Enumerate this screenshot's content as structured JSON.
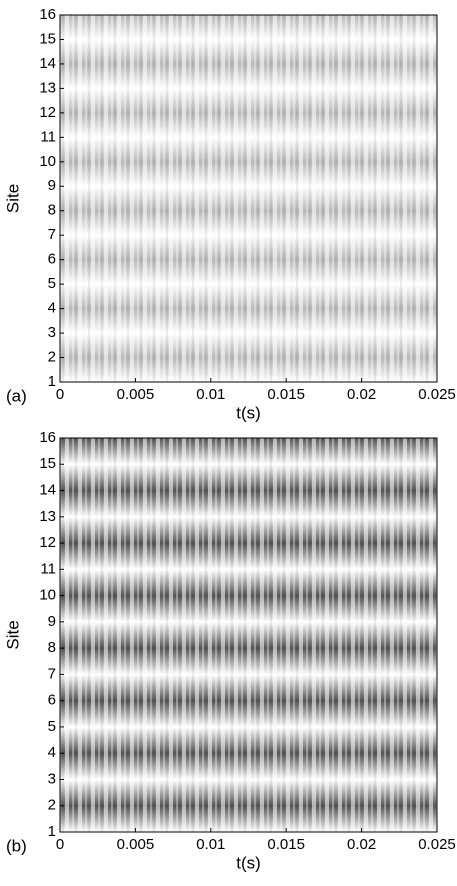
{
  "chart_data": [
    {
      "type": "heatmap",
      "panel_label": "(a)",
      "xlabel": "t(s)",
      "ylabel": "Site",
      "xlim": [
        0,
        0.025
      ],
      "xticks": [
        0,
        0.005,
        0.01,
        0.015,
        0.02,
        0.025
      ],
      "ylim": [
        1,
        16
      ],
      "yticks": [
        1,
        2,
        3,
        4,
        5,
        6,
        7,
        8,
        9,
        10,
        11,
        12,
        13,
        14,
        15,
        16
      ]
    },
    {
      "type": "heatmap",
      "panel_label": "(b)",
      "xlabel": "t(s)",
      "ylabel": "Site",
      "xlim": [
        0,
        0.025
      ],
      "xticks": [
        0,
        0.005,
        0.01,
        0.015,
        0.02,
        0.025
      ],
      "ylim": [
        1,
        16
      ],
      "yticks": [
        1,
        2,
        3,
        4,
        5,
        6,
        7,
        8,
        9,
        10,
        11,
        12,
        13,
        14,
        15,
        16
      ]
    }
  ]
}
